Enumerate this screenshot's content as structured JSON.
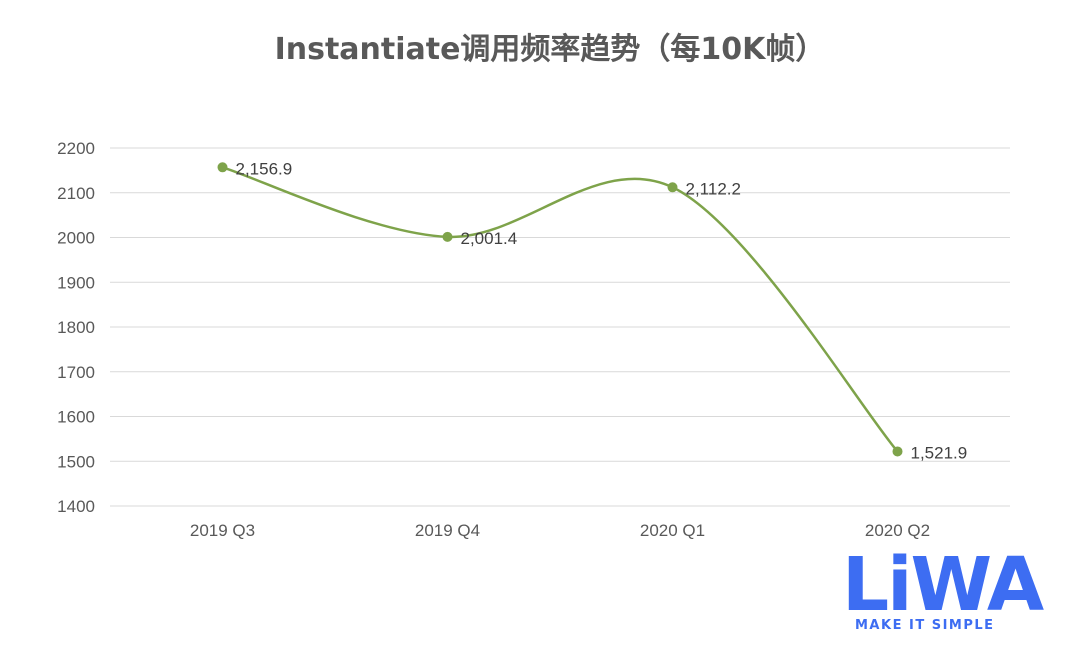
{
  "chart_data": {
    "type": "line",
    "title": "Instantiate调用频率趋势（每10K帧）",
    "categories": [
      "2019 Q3",
      "2019 Q4",
      "2020 Q1",
      "2020 Q2"
    ],
    "series": [
      {
        "values": [
          2156.9,
          2001.4,
          2112.2,
          1521.9
        ]
      }
    ],
    "data_labels": [
      "2,156.9",
      "2,001.4",
      "2,112.2",
      "1,521.9"
    ],
    "y_ticks": [
      "1400",
      "1500",
      "1600",
      "1700",
      "1800",
      "1900",
      "2000",
      "2100",
      "2200"
    ],
    "ylim": [
      1400,
      2200
    ],
    "grid": true,
    "smooth": true,
    "line_color": "#7ea34a",
    "grid_color": "#d9d9d9",
    "xlabel": "",
    "ylabel": ""
  },
  "logo": {
    "text": "LiWA",
    "tagline": "MAKE IT SIMPLE",
    "color": "#3d6df2"
  }
}
